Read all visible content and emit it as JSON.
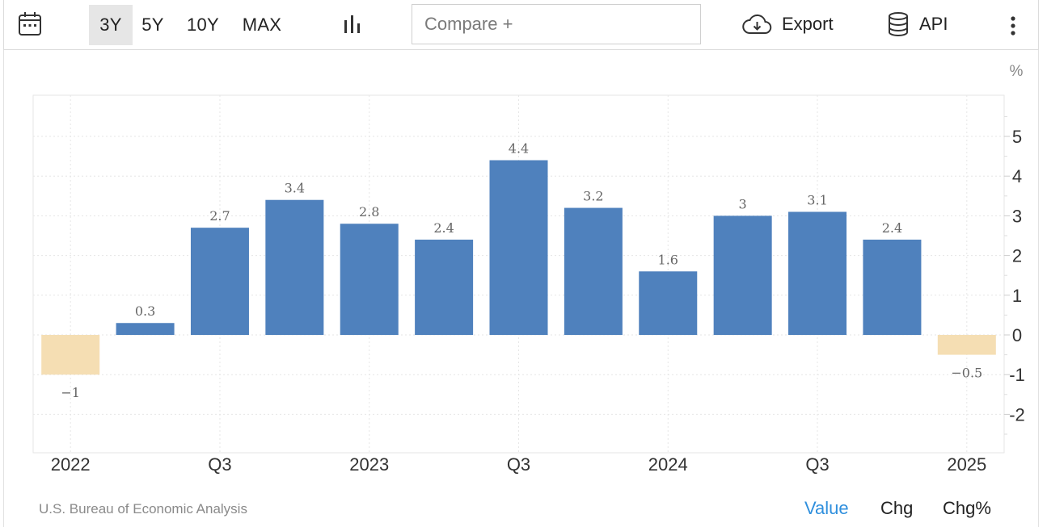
{
  "toolbar": {
    "ranges": [
      "3Y",
      "5Y",
      "10Y",
      "MAX"
    ],
    "active_range": "3Y",
    "compare_placeholder": "Compare +",
    "export_label": "Export",
    "api_label": "API",
    "icons": [
      "calendar-icon",
      "bar-chart-icon",
      "cloud-download-icon",
      "database-icon",
      "more-vertical-icon"
    ]
  },
  "chart_data": {
    "type": "bar",
    "unit_label": "%",
    "values": [
      -1,
      0.3,
      2.7,
      3.4,
      2.8,
      2.4,
      4.4,
      3.2,
      1.6,
      3,
      3.1,
      2.4,
      -0.5
    ],
    "value_labels": [
      "−1",
      "0.3",
      "2.7",
      "3.4",
      "2.8",
      "2.4",
      "4.4",
      "3.2",
      "1.6",
      "3",
      "3.1",
      "2.4",
      "−0.5"
    ],
    "x_tick_labels": [
      "2022",
      "Q3",
      "2023",
      "Q3",
      "2024",
      "Q3",
      "2025"
    ],
    "y_ticks": [
      5,
      4,
      3,
      2,
      1,
      0,
      -1,
      -2
    ],
    "y_tick_labels": [
      "5",
      "4",
      "3",
      "2",
      "1",
      "0",
      "-1",
      "-2"
    ],
    "ylim": [
      -3,
      6
    ],
    "grid": true,
    "colors": {
      "positive": "#4f81bd",
      "negative": "#f5deb3"
    }
  },
  "footer": {
    "source": "U.S. Bureau of Economic Analysis",
    "modes": [
      "Value",
      "Chg",
      "Chg%"
    ],
    "active_mode": "Value",
    "active_color": "#2f8fdd"
  }
}
